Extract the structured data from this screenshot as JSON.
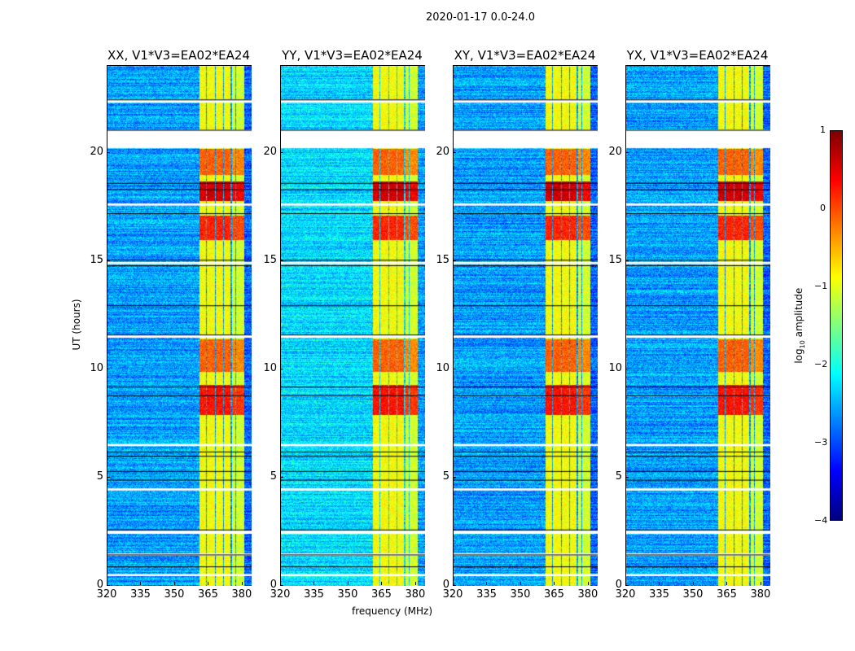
{
  "suptitle": "2020-01-17 0.0-24.0",
  "xlabel": "frequency (MHz)",
  "ylabel": "UT (hours)",
  "colorbar": {
    "label": "log10 amplitude",
    "label_main": "log",
    "label_sub": "10",
    "label_rest": " amplitude",
    "min": -4,
    "max": 1,
    "ticks": [
      "1",
      "0",
      "−1",
      "−2",
      "−3",
      "−4"
    ],
    "tick_values": [
      1,
      0,
      -1,
      -2,
      -3,
      -4
    ],
    "colormap": "jet"
  },
  "chart_data": [
    {
      "type": "heatmap",
      "title": "XX, V1*V3=EA02*EA24",
      "xlim": [
        320,
        384
      ],
      "ylim": [
        0,
        24
      ],
      "xticks": [
        "320",
        "335",
        "350",
        "365",
        "380"
      ],
      "xtick_values": [
        320,
        335,
        350,
        365,
        380
      ],
      "yticks": [
        "0",
        "5",
        "10",
        "15",
        "20"
      ],
      "ytick_values": [
        0,
        5,
        10,
        15,
        20
      ],
      "background_level": -2.6,
      "seed": 11
    },
    {
      "type": "heatmap",
      "title": "YY, V1*V3=EA02*EA24",
      "xlim": [
        320,
        384
      ],
      "ylim": [
        0,
        24
      ],
      "xticks": [
        "320",
        "335",
        "350",
        "365",
        "380"
      ],
      "xtick_values": [
        320,
        335,
        350,
        365,
        380
      ],
      "yticks": [
        "0",
        "5",
        "10",
        "15",
        "20"
      ],
      "ytick_values": [
        0,
        5,
        10,
        15,
        20
      ],
      "background_level": -2.3,
      "seed": 23
    },
    {
      "type": "heatmap",
      "title": "XY, V1*V3=EA02*EA24",
      "xlim": [
        320,
        384
      ],
      "ylim": [
        0,
        24
      ],
      "xticks": [
        "320",
        "335",
        "350",
        "365",
        "380"
      ],
      "xtick_values": [
        320,
        335,
        350,
        365,
        380
      ],
      "yticks": [
        "0",
        "5",
        "10",
        "15",
        "20"
      ],
      "ytick_values": [
        0,
        5,
        10,
        15,
        20
      ],
      "background_level": -2.6,
      "seed": 37
    },
    {
      "type": "heatmap",
      "title": "YX, V1*V3=EA02*EA24",
      "xlim": [
        320,
        384
      ],
      "ylim": [
        0,
        24
      ],
      "xticks": [
        "320",
        "335",
        "350",
        "365",
        "380"
      ],
      "xtick_values": [
        320,
        335,
        350,
        365,
        380
      ],
      "yticks": [
        "0",
        "5",
        "10",
        "15",
        "20"
      ],
      "ytick_values": [
        0,
        5,
        10,
        15,
        20
      ],
      "background_level": -2.6,
      "seed": 41
    }
  ],
  "structure": {
    "bright_bands_mhz": [
      [
        360.5,
        363.5
      ],
      [
        364,
        367.5
      ],
      [
        368,
        371
      ],
      [
        371.5,
        374.5
      ],
      [
        375,
        376.5
      ],
      [
        377,
        380.5
      ]
    ],
    "strong_hours": [
      [
        17.8,
        18.7,
        0.6
      ],
      [
        16.0,
        17.1,
        0.2
      ],
      [
        7.9,
        9.3,
        0.3
      ],
      [
        9.9,
        11.4,
        -0.1
      ],
      [
        19.0,
        20.2,
        -0.1
      ]
    ],
    "flagged_hours": [
      [
        20.2,
        21.05
      ],
      [
        22.3,
        22.45
      ],
      [
        2.4,
        2.55
      ],
      [
        1.4,
        1.5
      ],
      [
        0.45,
        0.55
      ],
      [
        4.4,
        4.5
      ],
      [
        11.45,
        11.6
      ],
      [
        14.85,
        14.95
      ],
      [
        6.45,
        6.55
      ],
      [
        17.55,
        17.65
      ]
    ],
    "black_lines_hours": [
      22.45,
      21.05,
      18.6,
      18.3,
      17.2,
      15.05,
      14.8,
      12.95,
      11.6,
      9.2,
      8.8,
      6.2,
      6.0,
      5.3,
      4.9,
      2.6,
      1.45,
      0.9
    ]
  }
}
